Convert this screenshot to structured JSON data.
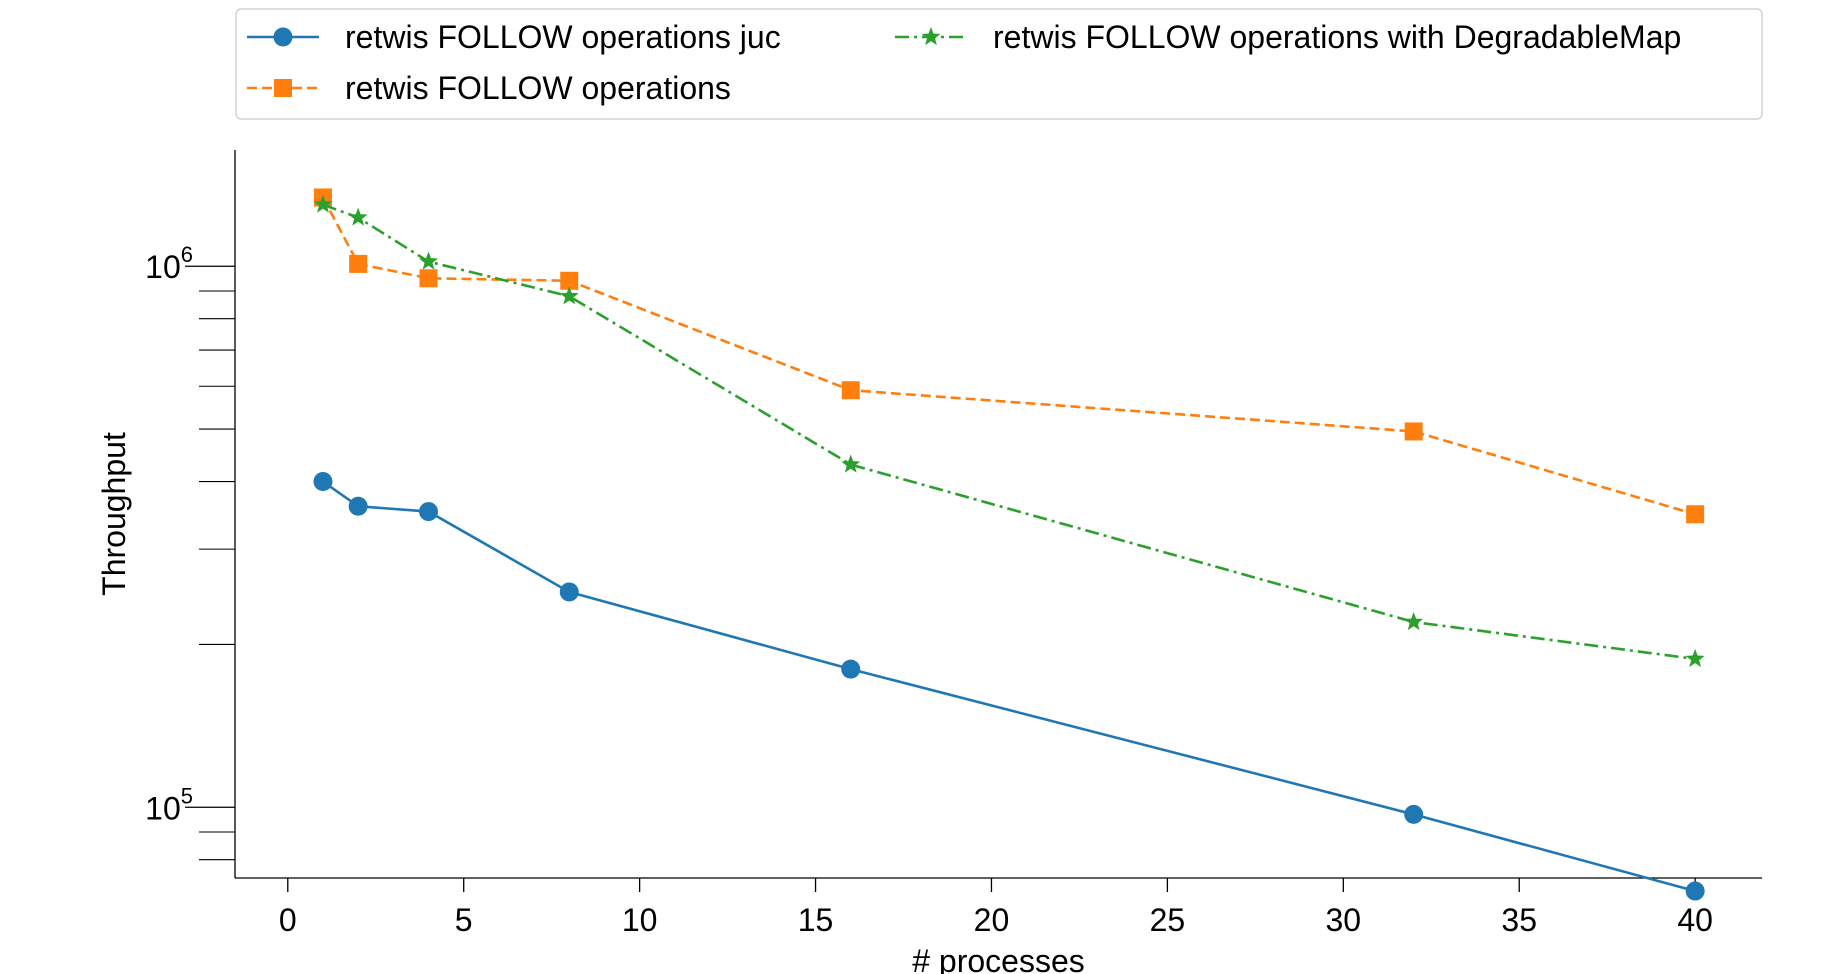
{
  "chart_data": {
    "type": "line",
    "xlabel": "# processes",
    "ylabel": "Throughput",
    "xlim": [
      -1.5,
      41.9
    ],
    "ylim": [
      74000,
      1640000
    ],
    "yscale": "log",
    "xticks": [
      0,
      5,
      10,
      15,
      20,
      25,
      30,
      35,
      40
    ],
    "yticks_major": [
      {
        "value": 100000,
        "base": "10",
        "exp": "5"
      },
      {
        "value": 1000000,
        "base": "10",
        "exp": "6"
      }
    ],
    "yticks_minor": [
      80000,
      90000,
      200000,
      300000,
      400000,
      500000,
      600000,
      700000,
      800000,
      900000
    ],
    "grid": false,
    "legend_position": "top",
    "series": [
      {
        "name": "retwis FOLLOW operations juc",
        "color": "#1f77b4",
        "marker": "circle",
        "linestyle": "solid",
        "x": [
          1,
          2,
          4,
          8,
          16,
          32,
          40
        ],
        "y": [
          400000,
          360000,
          352000,
          250000,
          180000,
          97000,
          70000
        ]
      },
      {
        "name": "retwis FOLLOW operations",
        "color": "#ff7f0e",
        "marker": "square",
        "linestyle": "dashed",
        "x": [
          1,
          2,
          4,
          8,
          16,
          32,
          40
        ],
        "y": [
          1340000,
          1010000,
          950000,
          940000,
          590000,
          495000,
          348000
        ]
      },
      {
        "name": "retwis FOLLOW operations with DegradableMap",
        "color": "#2ca02c",
        "marker": "star",
        "linestyle": "dashdot",
        "x": [
          1,
          2,
          4,
          8,
          16,
          32,
          40
        ],
        "y": [
          1300000,
          1230000,
          1020000,
          880000,
          430000,
          220000,
          188000
        ]
      }
    ]
  }
}
